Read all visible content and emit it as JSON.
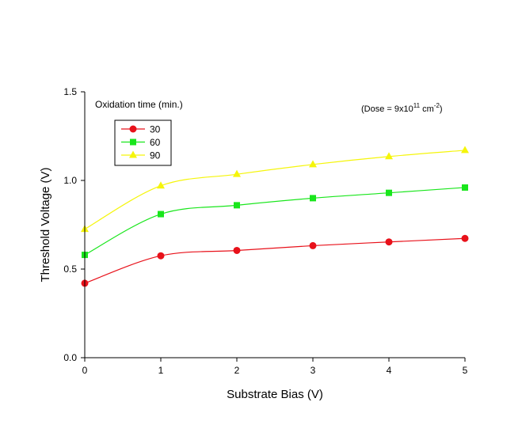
{
  "chart_data": {
    "type": "line",
    "title": "",
    "xlabel": "Substrate Bias (V)",
    "ylabel": "Threshold Voltage (V)",
    "xlim": [
      0,
      5
    ],
    "ylim": [
      0.0,
      1.5
    ],
    "xticks": [
      "0",
      "1",
      "2",
      "3",
      "4",
      "5"
    ],
    "yticks": [
      "0.0",
      "0.5",
      "1.0",
      "1.5"
    ],
    "grid": false,
    "legend_title": "Oxidation time (min.)",
    "legend_position": "top-left",
    "annotation": {
      "prefix": "(Dose = 9x10",
      "exp1": "11",
      "middle": " cm",
      "exp2": "-2",
      "suffix": ")"
    },
    "x": [
      0,
      1,
      2,
      3,
      4,
      5
    ],
    "series": [
      {
        "name": "30",
        "color": "#e8111a",
        "marker": "circle",
        "values": [
          0.42,
          0.575,
          0.605,
          0.632,
          0.653,
          0.673
        ]
      },
      {
        "name": "60",
        "color": "#19e61c",
        "marker": "square",
        "values": [
          0.58,
          0.81,
          0.86,
          0.9,
          0.93,
          0.96
        ]
      },
      {
        "name": "90",
        "color": "#f5f50a",
        "marker": "triangle",
        "values": [
          0.725,
          0.97,
          1.035,
          1.09,
          1.135,
          1.17
        ]
      }
    ]
  }
}
